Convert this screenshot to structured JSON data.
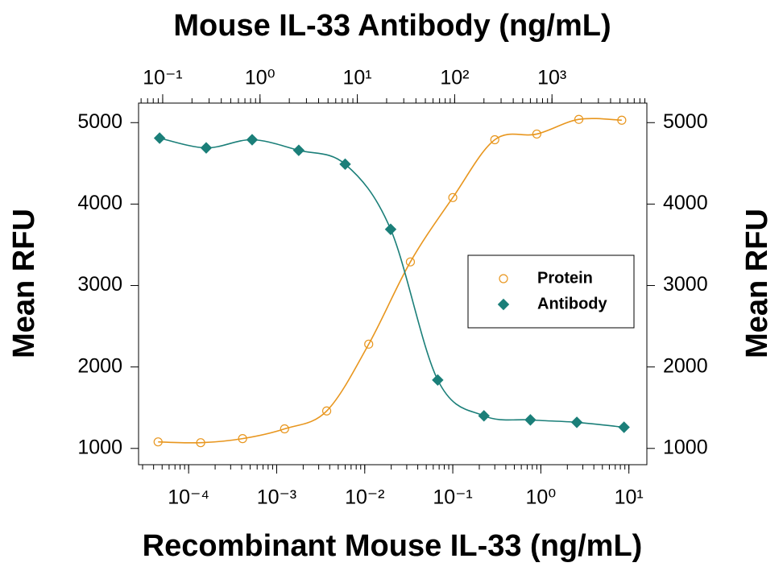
{
  "chart_data": {
    "type": "scatter",
    "x2label": "Mouse IL-33 Antibody (ng/mL)",
    "xlabel": "Recombinant Mouse IL-33 (ng/mL)",
    "ylabel": "Mean RFU",
    "y2label": "Mean RFU",
    "log_x": true,
    "log_x2": true,
    "xlim": [
      2.7e-05,
      16
    ],
    "xticks": [
      {
        "value": 0.0001,
        "label": "10⁻⁴"
      },
      {
        "value": 0.001,
        "label": "10⁻³"
      },
      {
        "value": 0.01,
        "label": "10⁻²"
      },
      {
        "value": 0.1,
        "label": "10⁻¹"
      },
      {
        "value": 1,
        "label": "10⁰"
      },
      {
        "value": 10,
        "label": "10¹"
      }
    ],
    "x2lim": [
      0.0565,
      9440
    ],
    "x2ticks": [
      {
        "value": 0.1,
        "label": "10⁻¹"
      },
      {
        "value": 1,
        "label": "10⁰"
      },
      {
        "value": 10,
        "label": "10¹"
      },
      {
        "value": 100,
        "label": "10²"
      },
      {
        "value": 1000,
        "label": "10³"
      }
    ],
    "ylim": [
      800,
      5240
    ],
    "yticks": [
      1000,
      2000,
      3000,
      4000,
      5000
    ],
    "y2lim": [
      800,
      5240
    ],
    "y2ticks": [
      1000,
      2000,
      3000,
      4000,
      5000
    ],
    "legend": "right",
    "series": [
      {
        "name": "Protein",
        "color": "#e8961e",
        "marker": "open-circle",
        "xaxis": "x",
        "x": [
          4.5e-05,
          0.000137,
          0.00041,
          0.00123,
          0.0037,
          0.0111,
          0.033,
          0.1,
          0.3,
          0.9,
          2.7,
          8.3
        ],
        "values": [
          1080,
          1070,
          1120,
          1240,
          1460,
          2280,
          3290,
          4080,
          4790,
          4860,
          5040,
          5030
        ]
      },
      {
        "name": "Antibody",
        "color": "#1b7f79",
        "marker": "diamond",
        "xaxis": "x2",
        "x": [
          0.093,
          0.28,
          0.83,
          2.5,
          7.5,
          22,
          67,
          200,
          600,
          1800,
          5500
        ],
        "values": [
          4810,
          4690,
          4790,
          4660,
          4490,
          3690,
          1840,
          1400,
          1350,
          1320,
          1260
        ]
      }
    ]
  }
}
